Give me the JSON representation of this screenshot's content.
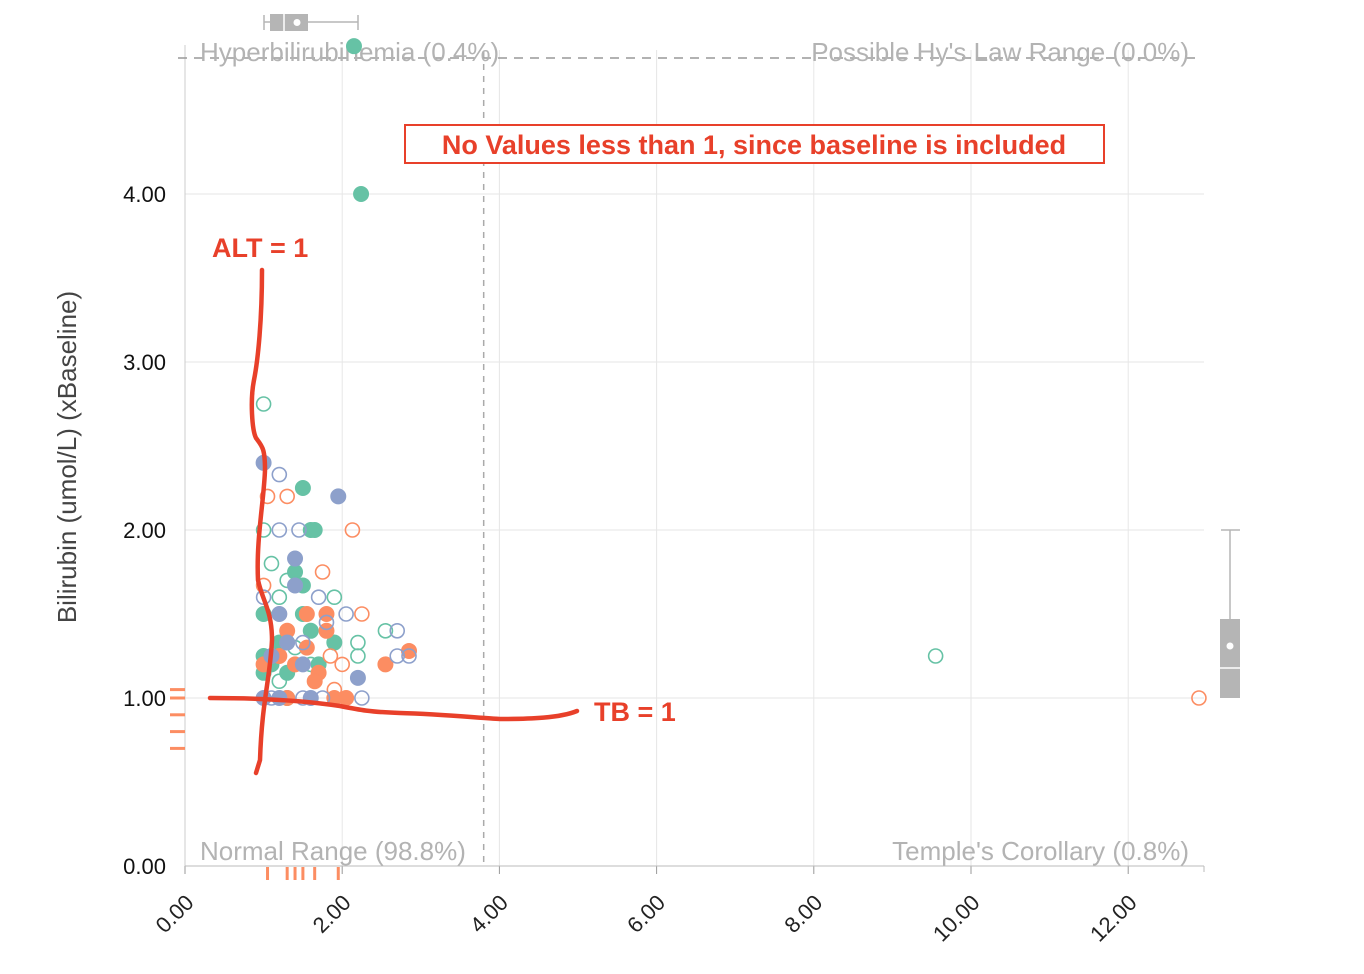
{
  "chart_data": {
    "type": "scatter",
    "title": "",
    "xlabel": "",
    "ylabel": "Bilirubin (umol/L) (xBaseline)",
    "xlim": [
      0,
      12.9
    ],
    "ylim": [
      0,
      4.5
    ],
    "x_ticks": [
      "0.00",
      "2.00",
      "4.00",
      "6.00",
      "8.00",
      "10.00",
      "12.00"
    ],
    "y_ticks": [
      "0.00",
      "1.00",
      "2.00",
      "3.00",
      "4.00"
    ],
    "x_tick_values": [
      0,
      2,
      4,
      6,
      8,
      10,
      12
    ],
    "y_tick_values": [
      0,
      1,
      2,
      3,
      4
    ],
    "grid": true,
    "reference_lines": {
      "x": 3.8,
      "y": 4.88
    },
    "quadrant_labels": {
      "top_left": "Hyperbilirubinemia (0.4%)",
      "top_right": "Possible Hy's Law Range (0.0%)",
      "bottom_left": "Normal Range (98.8%)",
      "bottom_right": "Temple's Corollary (0.8%)"
    },
    "colors": {
      "green": "#66c2a5",
      "orange": "#fc8d62",
      "blue": "#8da0cb",
      "annotation": "#e8402a",
      "grid": "#e6e6e6",
      "boxplot": "#b5b5b5"
    },
    "series": [
      {
        "color": "#66c2a5",
        "filled": [
          [
            2.15,
            4.88
          ],
          [
            2.24,
            4.0
          ],
          [
            1.5,
            2.25
          ],
          [
            1.6,
            2.0
          ],
          [
            1.65,
            2.0
          ],
          [
            1.0,
            1.5
          ],
          [
            1.4,
            1.75
          ],
          [
            1.5,
            1.67
          ],
          [
            1.2,
            1.33
          ],
          [
            1.5,
            1.5
          ],
          [
            1.6,
            1.4
          ],
          [
            1.0,
            1.25
          ],
          [
            1.1,
            1.2
          ],
          [
            1.3,
            1.15
          ],
          [
            1.0,
            1.15
          ],
          [
            1.3,
            1.0
          ],
          [
            1.9,
            1.33
          ],
          [
            1.7,
            1.2
          ]
        ],
        "open": [
          [
            1.0,
            2.75
          ],
          [
            1.0,
            2.0
          ],
          [
            1.1,
            1.8
          ],
          [
            1.2,
            1.6
          ],
          [
            1.3,
            1.7
          ],
          [
            1.9,
            1.6
          ],
          [
            2.2,
            1.33
          ],
          [
            2.55,
            1.4
          ],
          [
            2.2,
            1.25
          ],
          [
            9.55,
            1.25
          ],
          [
            1.4,
            1.3
          ],
          [
            1.6,
            1.2
          ],
          [
            1.2,
            1.1
          ]
        ]
      },
      {
        "color": "#fc8d62",
        "filled": [
          [
            1.8,
            1.5
          ],
          [
            1.55,
            1.5
          ],
          [
            1.8,
            1.4
          ],
          [
            1.3,
            1.4
          ],
          [
            1.55,
            1.3
          ],
          [
            1.2,
            1.25
          ],
          [
            1.7,
            1.15
          ],
          [
            1.65,
            1.1
          ],
          [
            2.55,
            1.2
          ],
          [
            2.85,
            1.28
          ],
          [
            1.3,
            1.0
          ],
          [
            1.9,
            1.0
          ],
          [
            2.05,
            1.0
          ],
          [
            1.0,
            1.2
          ],
          [
            1.4,
            1.2
          ]
        ],
        "open": [
          [
            1.05,
            2.2
          ],
          [
            1.3,
            2.2
          ],
          [
            2.13,
            2.0
          ],
          [
            1.75,
            1.75
          ],
          [
            2.25,
            1.5
          ],
          [
            1.2,
            1.5
          ],
          [
            1.85,
            1.25
          ],
          [
            2.0,
            1.2
          ],
          [
            1.0,
            1.67
          ],
          [
            12.9,
            1.0
          ],
          [
            1.9,
            1.05
          ],
          [
            1.3,
            1.33
          ]
        ]
      },
      {
        "color": "#8da0cb",
        "filled": [
          [
            1.0,
            2.4
          ],
          [
            1.95,
            2.2
          ],
          [
            1.4,
            1.83
          ],
          [
            1.2,
            1.5
          ],
          [
            1.3,
            1.33
          ],
          [
            1.1,
            1.25
          ],
          [
            1.0,
            1.0
          ],
          [
            1.2,
            1.0
          ],
          [
            1.6,
            1.0
          ],
          [
            2.2,
            1.12
          ],
          [
            1.4,
            1.67
          ],
          [
            1.5,
            1.2
          ]
        ],
        "open": [
          [
            1.2,
            2.33
          ],
          [
            1.2,
            2.0
          ],
          [
            1.45,
            2.0
          ],
          [
            1.7,
            1.6
          ],
          [
            2.05,
            1.5
          ],
          [
            2.7,
            1.4
          ],
          [
            2.85,
            1.25
          ],
          [
            2.7,
            1.25
          ],
          [
            2.25,
            1.0
          ],
          [
            1.1,
            1.0
          ],
          [
            1.5,
            1.0
          ],
          [
            1.75,
            1.0
          ],
          [
            1.0,
            1.6
          ],
          [
            1.5,
            1.33
          ],
          [
            1.8,
            1.45
          ]
        ]
      }
    ],
    "annotations": {
      "box_note": "No Values less than 1, since baseline is included",
      "alt_label": "ALT = 1",
      "tb_label": "TB = 1"
    },
    "rug_x_values": [
      1.05,
      1.3,
      1.4,
      1.5,
      1.65,
      1.95
    ],
    "rug_y_values": [
      0.7,
      0.8,
      0.9,
      1.0,
      1.05
    ]
  }
}
